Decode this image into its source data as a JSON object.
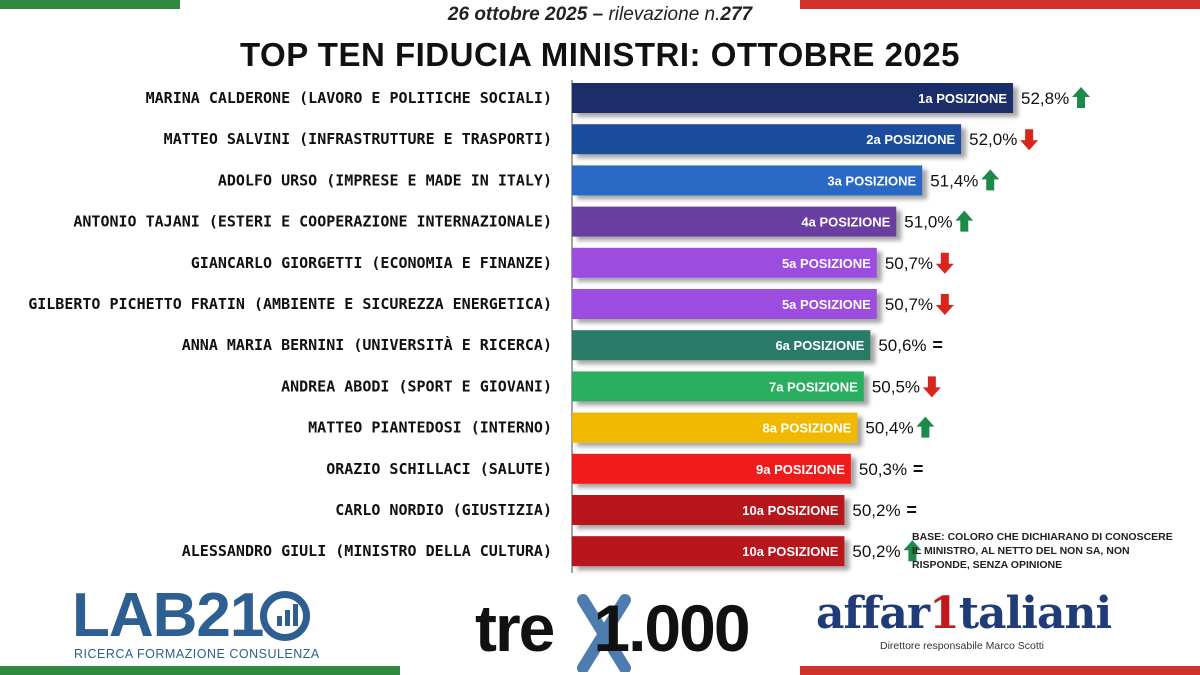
{
  "header": {
    "subtitle_prefix": "26 ottobre 2025 –",
    "subtitle_text": "rilevazione n.",
    "subtitle_number": "277",
    "title": "TOP TEN FIDUCIA MINISTRI:  OTTOBRE 2025"
  },
  "colors": {
    "flag_green": "#2e8b3e",
    "flag_red": "#d3312c",
    "up_arrow": "#1e8a4a",
    "down_arrow": "#d9261c"
  },
  "chart_data": {
    "type": "bar",
    "orientation": "horizontal",
    "xlim": [
      46,
      53
    ],
    "categories": [
      "MARINA CALDERONE (LAVORO E POLITICHE SOCIALI)",
      "MATTEO SALVINI (INFRASTRUTTURE E TRASPORTI)",
      "ADOLFO URSO (IMPRESE E MADE IN ITALY)",
      "ANTONIO TAJANI (ESTERI E COOPERAZIONE INTERNAZIONALE)",
      "GIANCARLO GIORGETTI (ECONOMIA E FINANZE)",
      "GILBERTO PICHETTO FRATIN (AMBIENTE E SICUREZZA ENERGETICA)",
      "ANNA MARIA BERNINI (UNIVERSITÀ E RICERCA)",
      "ANDREA ABODI (SPORT E GIOVANI)",
      "MATTEO PIANTEDOSI (INTERNO)",
      "ORAZIO SCHILLACI (SALUTE)",
      "CARLO NORDIO (GIUSTIZIA)",
      "ALESSANDRO GIULI (MINISTRO DELLA CULTURA)"
    ],
    "values": [
      52.8,
      52.0,
      51.4,
      51.0,
      50.7,
      50.7,
      50.6,
      50.5,
      50.4,
      50.3,
      50.2,
      50.2
    ],
    "value_labels": [
      "52,8%",
      "52,0%",
      "51,4%",
      "51,0%",
      "50,7%",
      "50,7%",
      "50,6%",
      "50,5%",
      "50,4%",
      "50,3%",
      "50,2%",
      "50,2%"
    ],
    "position_labels": [
      "1a POSIZIONE",
      "2a POSIZIONE",
      "3a POSIZIONE",
      "4a POSIZIONE",
      "5a POSIZIONE",
      "5a POSIZIONE",
      "6a POSIZIONE",
      "7a POSIZIONE",
      "8a POSIZIONE",
      "9a POSIZIONE",
      "10a POSIZIONE",
      "10a POSIZIONE"
    ],
    "trends": [
      "up",
      "down",
      "up",
      "up",
      "down",
      "down",
      "equal",
      "down",
      "up",
      "equal",
      "equal",
      "up"
    ],
    "bar_colors": [
      "#1a2f6b",
      "#1b4d9c",
      "#2a67c6",
      "#6a3ea0",
      "#9c4de0",
      "#9c4de0",
      "#2c7a68",
      "#2cae5e",
      "#f0b800",
      "#f01d1d",
      "#b7141b",
      "#b7141b"
    ]
  },
  "trend_symbols": {
    "equal": "="
  },
  "note": "BASE: COLORO CHE DICHIARANO DI CONOSCERE IL MINISTRO, AL NETTO DEL NON SA, NON RISPONDE, SENZA OPINIONE",
  "logos": {
    "lab21": {
      "name": "LAB21",
      "tagline": "RICERCA FORMAZIONE CONSULENZA"
    },
    "trex": {
      "name": "tre",
      "suffix": "1.000"
    },
    "affaritaliani": {
      "name_a": "affar",
      "name_one": "1",
      "name_b": "taliani",
      "tagline": "Direttore responsabile Marco Scotti"
    }
  }
}
